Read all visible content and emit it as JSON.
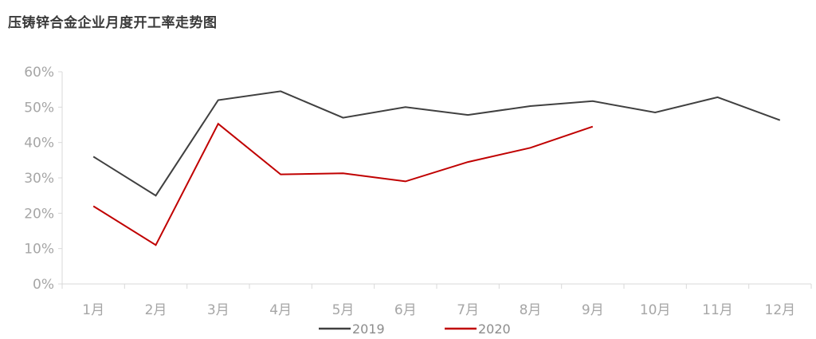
{
  "chart_data": {
    "type": "line",
    "title": "压铸锌合金企业月度开工率走势图",
    "categories": [
      "1月",
      "2月",
      "3月",
      "4月",
      "5月",
      "6月",
      "7月",
      "8月",
      "9月",
      "10月",
      "11月",
      "12月"
    ],
    "series": [
      {
        "name": "2019",
        "color": "#404040",
        "values": [
          36.0,
          25.0,
          52.0,
          54.5,
          47.0,
          50.0,
          47.8,
          50.3,
          51.7,
          48.5,
          52.8,
          46.3
        ]
      },
      {
        "name": "2020",
        "color": "#c00000",
        "values": [
          22.0,
          11.0,
          45.3,
          31.0,
          31.3,
          29.0,
          34.5,
          38.5,
          44.5,
          null,
          null,
          null
        ]
      }
    ],
    "yticks": [
      "0%",
      "10%",
      "20%",
      "30%",
      "40%",
      "50%",
      "60%"
    ],
    "ylim": [
      0,
      60
    ],
    "legend": "bottom",
    "grid": false
  }
}
